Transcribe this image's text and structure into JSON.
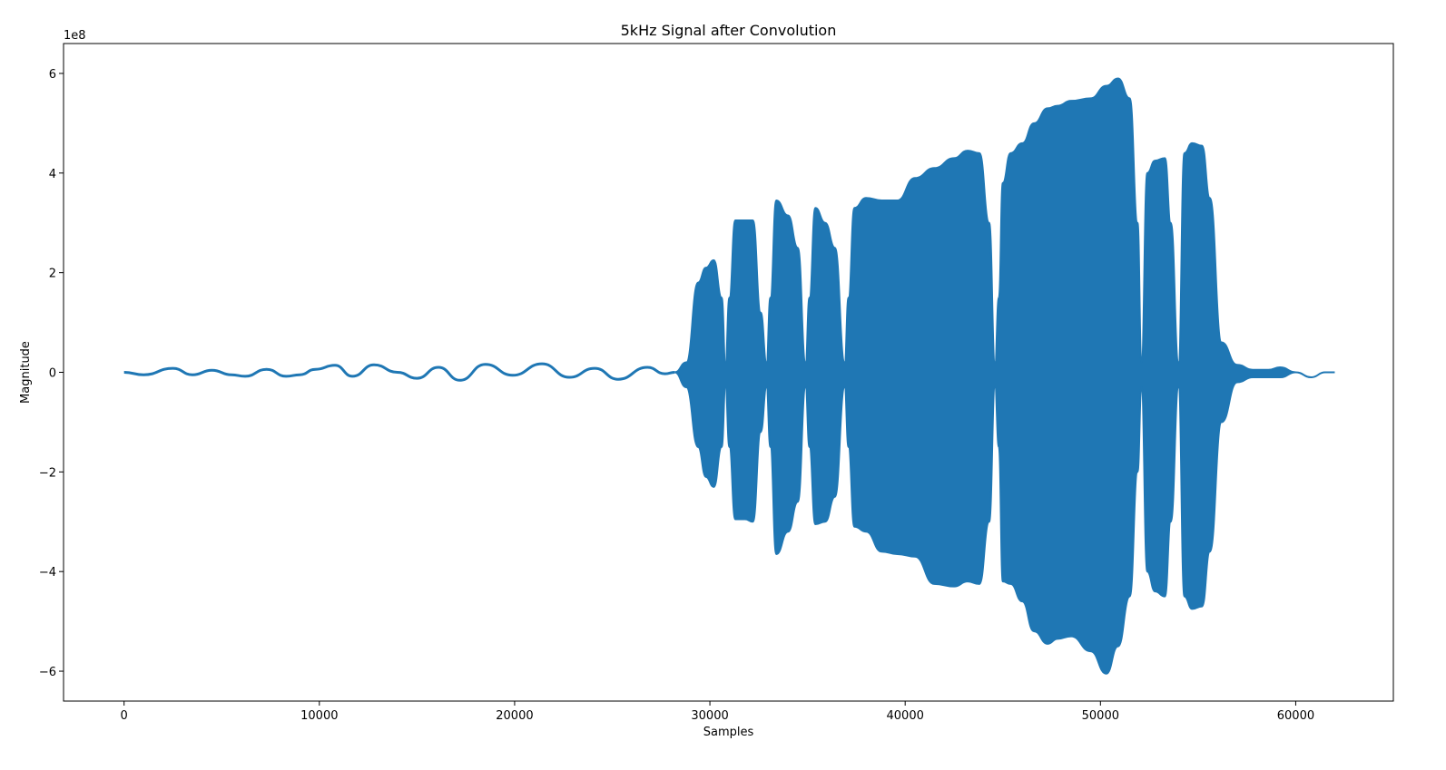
{
  "chart_data": {
    "type": "area",
    "title": "5kHz Signal after Convolution",
    "xlabel": "Samples",
    "ylabel": "Magnitude",
    "y_offset_text": "1e8",
    "y_scale": 100000000,
    "xlim": [
      -3100,
      65000
    ],
    "ylim": [
      -6.6,
      6.6
    ],
    "x_ticks": [
      0,
      10000,
      20000,
      30000,
      40000,
      50000,
      60000
    ],
    "x_tick_labels": [
      "0",
      "10000",
      "20000",
      "30000",
      "40000",
      "50000",
      "60000"
    ],
    "y_ticks": [
      -6,
      -4,
      -2,
      0,
      2,
      4,
      6
    ],
    "y_tick_labels": [
      "−6",
      "−4",
      "−2",
      "0",
      "2",
      "4",
      "6"
    ],
    "grid": false,
    "series": [
      {
        "color": "#1f77b4",
        "low_region_centerline": {
          "x": [
            0,
            1000,
            2500,
            3500,
            4500,
            5500,
            6200,
            7300,
            8300,
            9000,
            9800,
            10800,
            11700,
            12800,
            14000,
            15000,
            16100,
            17200,
            18500,
            19900,
            21400,
            22800,
            24100,
            25300,
            26800,
            27700,
            28200
          ],
          "y": [
            0.0,
            -0.05,
            0.08,
            -0.05,
            0.04,
            -0.05,
            -0.08,
            0.06,
            -0.08,
            -0.05,
            0.06,
            0.14,
            -0.08,
            0.15,
            0.0,
            -0.12,
            0.1,
            -0.16,
            0.16,
            -0.06,
            0.17,
            -0.1,
            0.08,
            -0.14,
            0.1,
            -0.03,
            0.0
          ]
        },
        "envelope_upper": {
          "x": [
            28200,
            28800,
            29400,
            29800,
            30200,
            30600,
            30800,
            31000,
            31300,
            31800,
            32200,
            32600,
            32900,
            33100,
            33400,
            34000,
            34500,
            34900,
            35100,
            35400,
            35900,
            36400,
            36900,
            37100,
            37400,
            38000,
            38800,
            39600,
            40500,
            41500,
            42500,
            43200,
            43800,
            44300,
            44600,
            44800,
            45000,
            45400,
            46000,
            46600,
            47300,
            47800,
            48500,
            49500,
            50300,
            50900,
            51500,
            51900,
            52100,
            52400,
            52800,
            53300,
            53600,
            54000,
            54300,
            54700,
            55200,
            55600,
            56200,
            57000,
            57800,
            58600,
            59200,
            60000,
            60800,
            61500,
            62000
          ],
          "y": [
            0.0,
            0.2,
            1.8,
            2.1,
            2.25,
            1.5,
            0.2,
            1.5,
            3.05,
            3.05,
            3.05,
            1.2,
            0.2,
            1.5,
            3.45,
            3.15,
            2.5,
            0.2,
            1.5,
            3.3,
            3.0,
            2.5,
            0.2,
            1.5,
            3.3,
            3.5,
            3.45,
            3.45,
            3.9,
            4.1,
            4.3,
            4.45,
            4.4,
            3.0,
            0.2,
            1.5,
            3.8,
            4.4,
            4.6,
            5.0,
            5.3,
            5.35,
            5.45,
            5.5,
            5.75,
            5.9,
            5.5,
            3.0,
            0.2,
            4.0,
            4.25,
            4.3,
            3.0,
            0.2,
            4.4,
            4.6,
            4.55,
            3.5,
            0.6,
            0.15,
            0.05,
            0.05,
            0.1,
            0.0,
            -0.1,
            0.0,
            0.0
          ],
          "note": "values in units of 1e8"
        },
        "envelope_lower": {
          "x": [
            28200,
            28800,
            29400,
            29800,
            30200,
            30600,
            30800,
            31000,
            31300,
            31800,
            32200,
            32600,
            32900,
            33100,
            33400,
            34000,
            34500,
            34900,
            35100,
            35400,
            35900,
            36400,
            36900,
            37100,
            37400,
            38000,
            38800,
            39600,
            40500,
            41500,
            42500,
            43200,
            43800,
            44300,
            44600,
            44800,
            45000,
            45400,
            46000,
            46600,
            47300,
            47800,
            48500,
            49500,
            50300,
            50900,
            51500,
            51900,
            52100,
            52400,
            52800,
            53300,
            53600,
            54000,
            54300,
            54700,
            55200,
            55600,
            56200,
            57000,
            57800,
            58600,
            59200,
            60000,
            60800,
            61500,
            62000
          ],
          "y": [
            0.0,
            -0.3,
            -1.5,
            -2.1,
            -2.3,
            -1.5,
            -0.3,
            -1.5,
            -2.95,
            -2.95,
            -3.0,
            -1.2,
            -0.3,
            -1.5,
            -3.65,
            -3.2,
            -2.6,
            -0.3,
            -1.5,
            -3.05,
            -3.0,
            -2.5,
            -0.3,
            -1.5,
            -3.1,
            -3.2,
            -3.6,
            -3.65,
            -3.7,
            -4.25,
            -4.3,
            -4.2,
            -4.25,
            -3.0,
            -0.3,
            -1.5,
            -4.2,
            -4.25,
            -4.6,
            -5.2,
            -5.45,
            -5.35,
            -5.3,
            -5.6,
            -6.05,
            -5.5,
            -4.5,
            -2.0,
            -0.3,
            -4.0,
            -4.4,
            -4.5,
            -3.0,
            -0.3,
            -4.5,
            -4.75,
            -4.7,
            -3.6,
            -1.0,
            -0.2,
            -0.1,
            -0.1,
            -0.1,
            0.0,
            -0.1,
            0.0,
            0.0
          ],
          "note": "values in units of 1e8"
        }
      }
    ]
  }
}
